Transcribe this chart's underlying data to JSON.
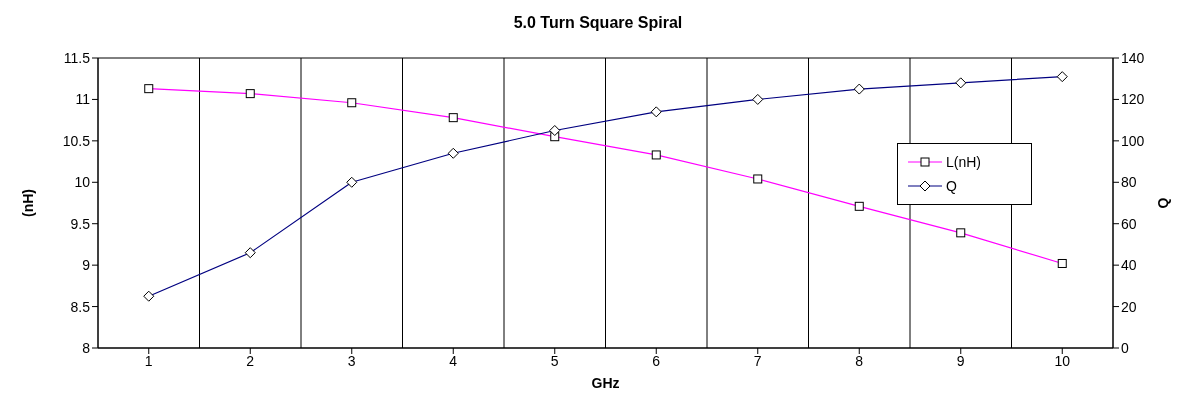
{
  "chart_data": {
    "type": "line",
    "title": "5.0 Turn Square Spiral",
    "xlabel": "GHz",
    "ylabel": "(nH)",
    "y2label": "Q",
    "categories": [
      "1",
      "2",
      "3",
      "4",
      "5",
      "6",
      "7",
      "8",
      "9",
      "10"
    ],
    "series": [
      {
        "name": "L(nH)",
        "color": "#ff00ff",
        "marker": "square",
        "values": [
          11.13,
          11.07,
          10.96,
          10.78,
          10.55,
          10.33,
          10.04,
          9.71,
          9.39,
          9.02
        ]
      },
      {
        "name": "Q",
        "color": "#000080",
        "marker": "diamond",
        "axis": "y2",
        "values": [
          25,
          46,
          80,
          94,
          105,
          114,
          120,
          125,
          128,
          131
        ]
      }
    ],
    "ylim": [
      8,
      11.5
    ],
    "yticks": [
      8,
      8.5,
      9,
      9.5,
      10,
      10.5,
      11,
      11.5
    ],
    "y2lim": [
      0,
      140
    ],
    "y2ticks": [
      0,
      20,
      40,
      60,
      80,
      100,
      120,
      140
    ],
    "grid": true,
    "legend": "right",
    "line_style": "solid"
  }
}
